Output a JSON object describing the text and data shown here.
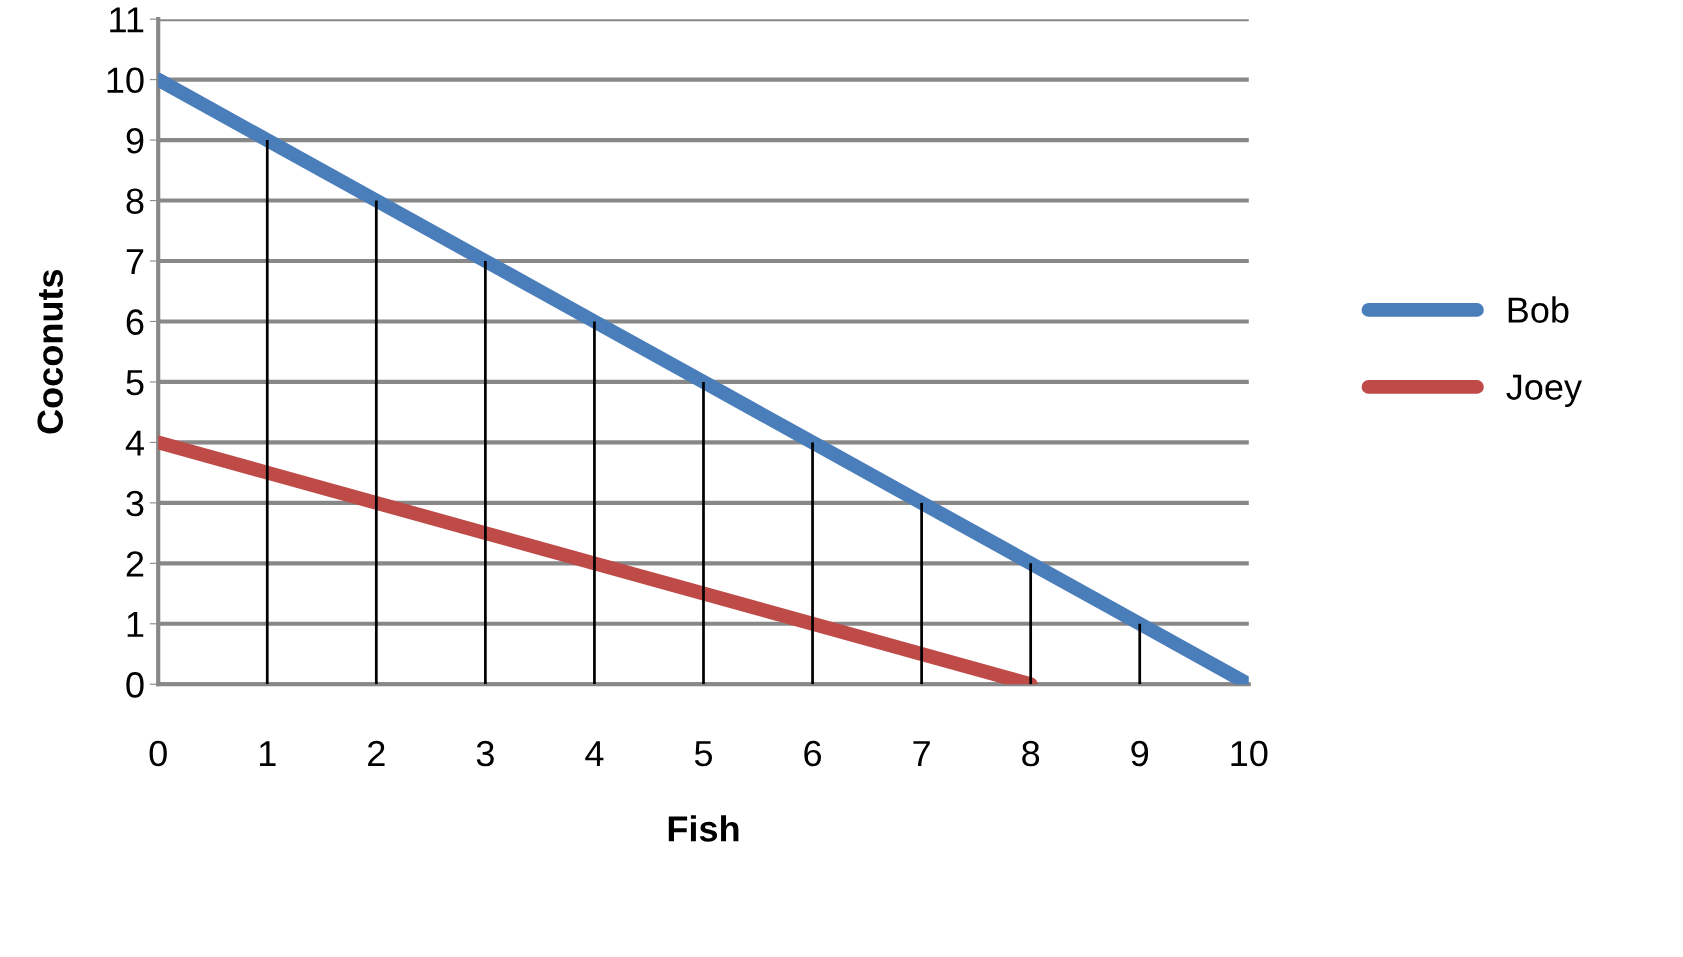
{
  "chart_data": {
    "type": "line",
    "xlabel": "Fish",
    "ylabel": "Coconuts",
    "xlim": [
      0,
      10
    ],
    "xticks": [
      0,
      1,
      2,
      3,
      4,
      5,
      6,
      7,
      8,
      9,
      10
    ],
    "ylim": [
      0,
      11
    ],
    "yticks": [
      0,
      1,
      2,
      3,
      4,
      5,
      6,
      7,
      8,
      9,
      10,
      11
    ],
    "grid": "y",
    "legend": "right",
    "marker": "none",
    "line_style": "solid",
    "series": [
      {
        "name": "Bob",
        "color": "#4a7ebb",
        "x": [
          0,
          1,
          2,
          3,
          4,
          5,
          6,
          7,
          8,
          9,
          10
        ],
        "values": [
          10,
          9,
          8,
          7,
          6,
          5,
          4,
          3,
          2,
          1,
          0
        ]
      },
      {
        "name": "Joey",
        "color": "#be4b48",
        "x": [
          0,
          1,
          2,
          3,
          4,
          5,
          6,
          7,
          8
        ],
        "values": [
          4,
          3.5,
          3,
          2.5,
          2,
          1.5,
          1,
          0.5,
          0
        ]
      },
      {
        "type": "bar",
        "color": "#000000",
        "x": [
          1,
          2,
          3,
          4,
          5,
          6,
          7,
          8,
          9
        ],
        "values": [
          9,
          8,
          7,
          6,
          5,
          4,
          3,
          2,
          1
        ]
      }
    ]
  }
}
